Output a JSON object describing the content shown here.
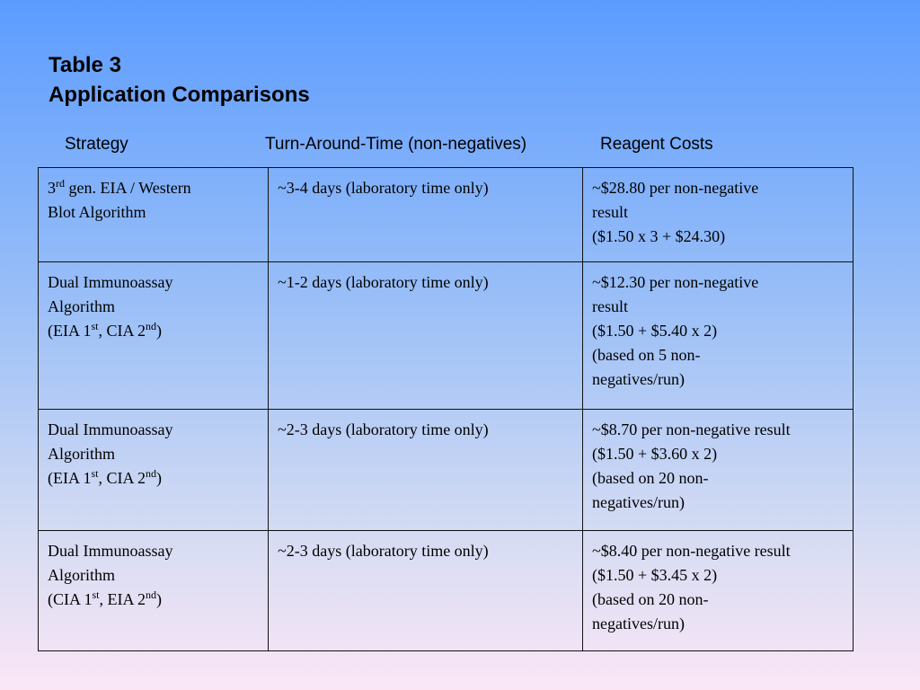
{
  "title": {
    "line1": "Table 3",
    "line2": "Application Comparisons"
  },
  "column_headers": {
    "strategy": "Strategy",
    "turnaround": "Turn-Around-Time (non-negatives)",
    "cost": "Reagent Costs"
  },
  "rows": [
    {
      "strategy": {
        "line1_prefix": "3",
        "line1_sup": "rd",
        "line1_rest": " gen. EIA / Western",
        "line2": "Blot Algorithm"
      },
      "turnaround": "~3-4 days (laboratory time only)",
      "cost": {
        "line1": "~$28.80 per non-negative",
        "line2": "result",
        "line3": "($1.50 x 3 + $24.30)"
      }
    },
    {
      "strategy": {
        "line1": "Dual Immunoassay",
        "line2": "Algorithm",
        "l3_a": "(EIA 1",
        "l3_sup1": "st",
        "l3_b": ", CIA 2",
        "l3_sup2": "nd",
        "l3_c": ")"
      },
      "turnaround": "~1-2 days (laboratory time only)",
      "cost": {
        "line1": "~$12.30 per non-negative",
        "line2": "result",
        "line3": "($1.50 + $5.40 x 2)",
        "line4": "(based on 5 non-",
        "line5": "negatives/run)"
      }
    },
    {
      "strategy": {
        "line1": "Dual Immunoassay",
        "line2": "Algorithm",
        "l3_a": "(EIA 1",
        "l3_sup1": "st",
        "l3_b": ", CIA 2",
        "l3_sup2": "nd",
        "l3_c": ")"
      },
      "turnaround": "~2-3 days (laboratory time only)",
      "cost": {
        "line1": "~$8.70 per non-negative result",
        "line2": "($1.50 + $3.60 x 2)",
        "line3": "(based on 20 non-",
        "line4": "negatives/run)"
      }
    },
    {
      "strategy": {
        "line1": "Dual Immunoassay",
        "line2": "Algorithm",
        "l3_a": "(CIA 1",
        "l3_sup1": "st",
        "l3_b": ", EIA 2",
        "l3_sup2": "nd",
        "l3_c": ")"
      },
      "turnaround": "~2-3 days (laboratory time only)",
      "cost": {
        "line1": "~$8.40 per non-negative result",
        "line2": "($1.50 + $3.45 x 2)",
        "line3": "(based on 20 non-",
        "line4": "negatives/run)"
      }
    }
  ]
}
